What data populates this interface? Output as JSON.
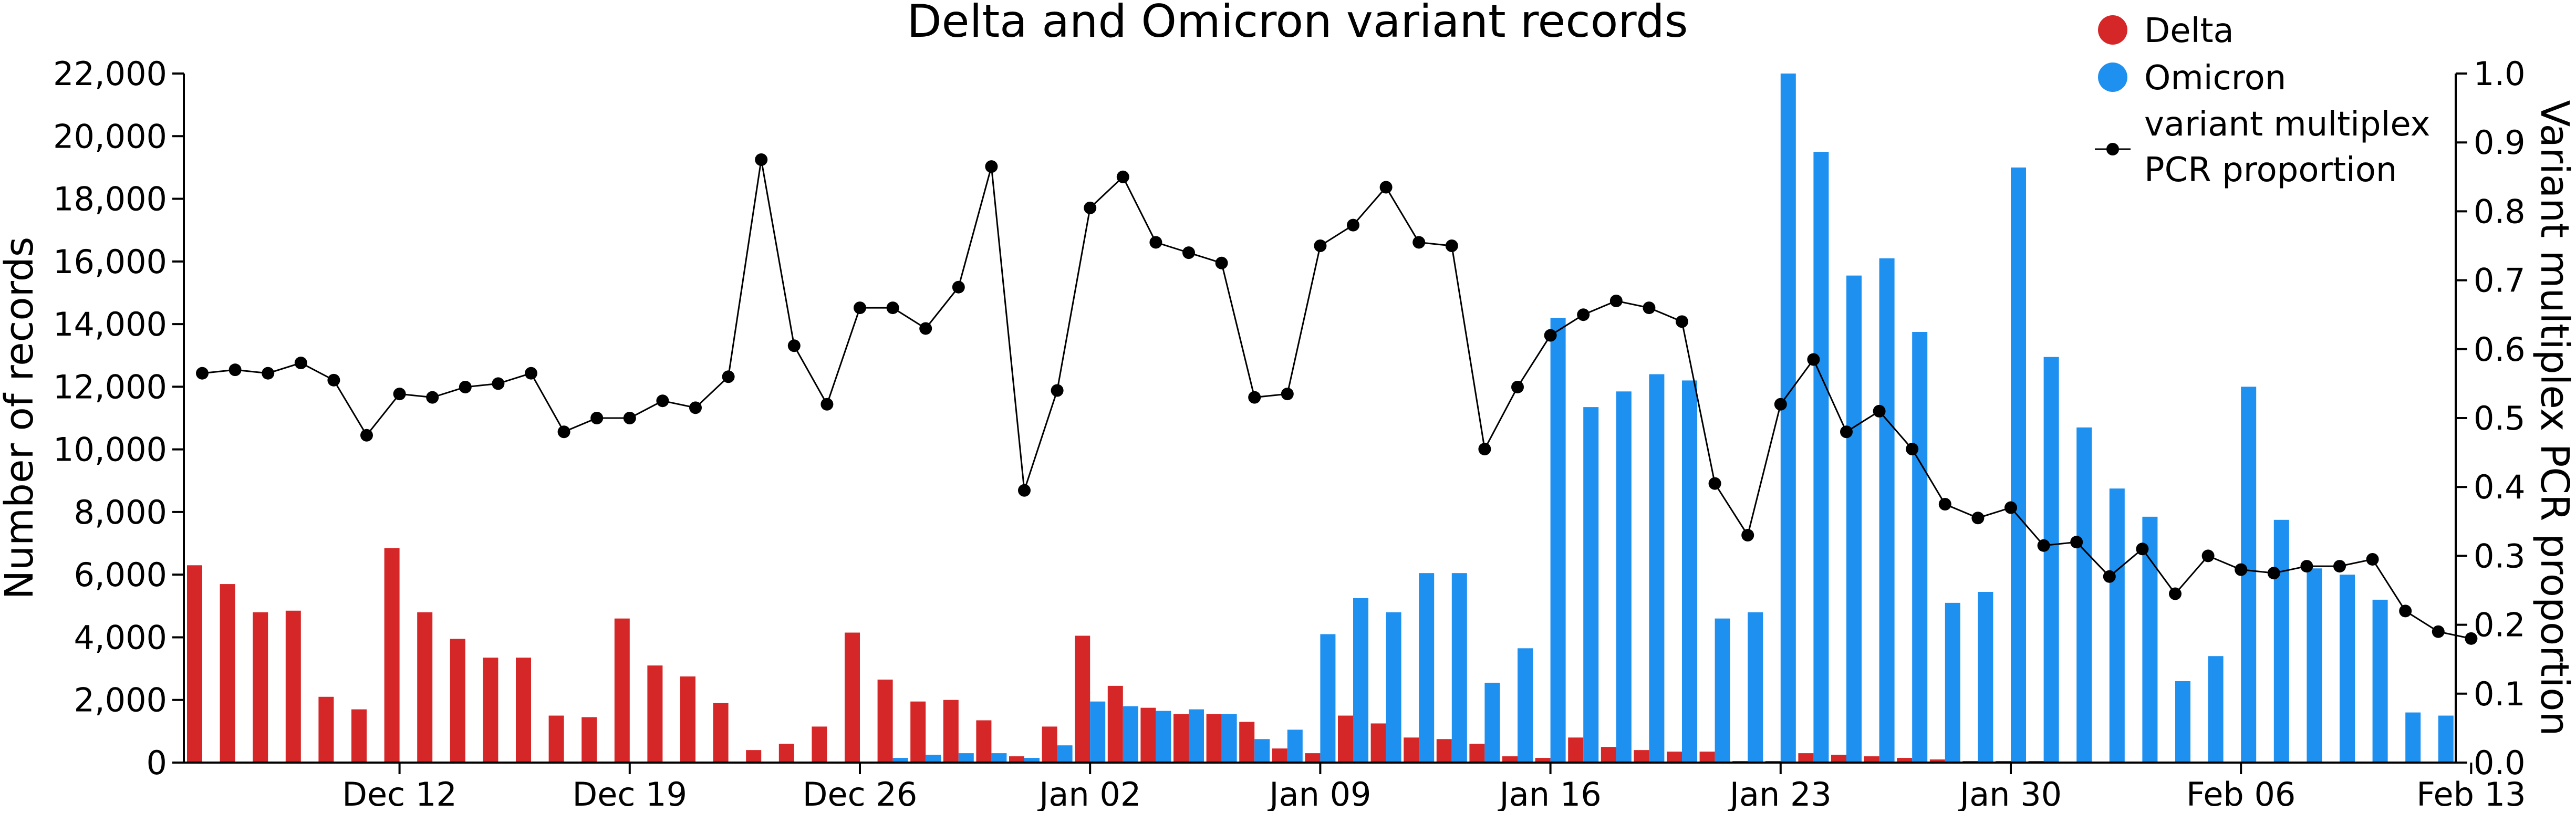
{
  "chart_data": {
    "type": "bar",
    "title": "Delta and Omicron variant records",
    "ylabel": "Number of records",
    "y2label": "Variant multiplex PCR proportion",
    "xlabel": "",
    "ylim": [
      0,
      22000
    ],
    "y2lim": [
      0.0,
      1.0
    ],
    "yticks": [
      0,
      2000,
      4000,
      6000,
      8000,
      10000,
      12000,
      14000,
      16000,
      18000,
      20000,
      22000
    ],
    "yticklabels": [
      "0",
      "2,000",
      "4,000",
      "6,000",
      "8,000",
      "10,000",
      "12,000",
      "14,000",
      "16,000",
      "18,000",
      "20,000",
      "22,000"
    ],
    "y2ticks": [
      0.0,
      0.1,
      0.2,
      0.3,
      0.4,
      0.5,
      0.6,
      0.7,
      0.8,
      0.9,
      1.0
    ],
    "y2ticklabels": [
      "0.0",
      "0.1",
      "0.2",
      "0.3",
      "0.4",
      "0.5",
      "0.6",
      "0.7",
      "0.8",
      "0.9",
      "1.0"
    ],
    "x_dates": [
      "Dec 06",
      "Dec 07",
      "Dec 08",
      "Dec 09",
      "Dec 10",
      "Dec 11",
      "Dec 12",
      "Dec 13",
      "Dec 14",
      "Dec 15",
      "Dec 16",
      "Dec 17",
      "Dec 18",
      "Dec 19",
      "Dec 20",
      "Dec 21",
      "Dec 22",
      "Dec 23",
      "Dec 24",
      "Dec 25",
      "Dec 26",
      "Dec 27",
      "Dec 28",
      "Dec 29",
      "Dec 30",
      "Dec 31",
      "Jan 01",
      "Jan 02",
      "Jan 03",
      "Jan 04",
      "Jan 05",
      "Jan 06",
      "Jan 07",
      "Jan 08",
      "Jan 09",
      "Jan 10",
      "Jan 11",
      "Jan 12",
      "Jan 13",
      "Jan 14",
      "Jan 15",
      "Jan 16",
      "Jan 17",
      "Jan 18",
      "Jan 19",
      "Jan 20",
      "Jan 21",
      "Jan 22",
      "Jan 23",
      "Jan 24",
      "Jan 25",
      "Jan 26",
      "Jan 27",
      "Jan 28",
      "Jan 29",
      "Jan 30",
      "Jan 31",
      "Feb 01",
      "Feb 02",
      "Feb 03",
      "Feb 04",
      "Feb 05",
      "Feb 06",
      "Feb 07",
      "Feb 08",
      "Feb 09",
      "Feb 10",
      "Feb 11",
      "Feb 12",
      "Feb 13"
    ],
    "xticks": [
      "Dec 12",
      "Dec 19",
      "Dec 26",
      "Jan 02",
      "Jan 09",
      "Jan 16",
      "Jan 23",
      "Jan 30",
      "Feb 06",
      "Feb 13"
    ],
    "series": [
      {
        "name": "Delta",
        "type": "bar",
        "axis": "left",
        "color": "#d62728",
        "values": [
          6300,
          5700,
          4800,
          4850,
          2100,
          1700,
          6850,
          4800,
          3950,
          3350,
          3350,
          1500,
          1450,
          4600,
          3100,
          2750,
          1900,
          400,
          600,
          1150,
          4150,
          2650,
          1950,
          2000,
          1350,
          200,
          1150,
          4050,
          2450,
          1750,
          1550,
          1550,
          1300,
          450,
          300,
          1500,
          1250,
          800,
          750,
          600,
          200,
          150,
          800,
          500,
          400,
          350,
          350,
          50,
          50,
          300,
          250,
          200,
          150,
          100,
          50,
          50,
          50,
          0,
          0,
          0,
          0,
          0,
          0,
          0,
          0,
          0,
          0,
          0,
          0,
          0
        ]
      },
      {
        "name": "Omicron",
        "type": "bar",
        "axis": "left",
        "color": "#1e90f0",
        "values": [
          0,
          0,
          0,
          0,
          0,
          0,
          0,
          0,
          0,
          0,
          0,
          0,
          0,
          0,
          0,
          0,
          0,
          0,
          0,
          0,
          0,
          150,
          250,
          300,
          300,
          150,
          550,
          1950,
          1800,
          1650,
          1700,
          1550,
          750,
          1050,
          4100,
          5250,
          4800,
          6050,
          6050,
          2550,
          3650,
          14200,
          11350,
          11850,
          12400,
          12200,
          4600,
          4800,
          22000,
          19500,
          15550,
          16100,
          13750,
          5100,
          5450,
          19000,
          12950,
          10700,
          8750,
          7850,
          2600,
          3400,
          12000,
          7750,
          6200,
          6000,
          5200,
          1600,
          1500,
          0
        ]
      },
      {
        "name": "variant multiplex PCR proportion",
        "type": "line",
        "axis": "right",
        "color": "#000000",
        "values": [
          0.565,
          0.57,
          0.565,
          0.58,
          0.555,
          0.475,
          0.535,
          0.53,
          0.545,
          0.55,
          0.565,
          0.48,
          0.5,
          0.5,
          0.525,
          0.515,
          0.56,
          0.875,
          0.605,
          0.52,
          0.66,
          0.66,
          0.63,
          0.69,
          0.865,
          0.395,
          0.54,
          0.805,
          0.85,
          0.755,
          0.74,
          0.725,
          0.53,
          0.535,
          0.75,
          0.78,
          0.835,
          0.755,
          0.75,
          0.455,
          0.545,
          0.62,
          0.65,
          0.67,
          0.66,
          0.64,
          0.405,
          0.33,
          0.52,
          0.585,
          0.48,
          0.51,
          0.455,
          0.375,
          0.355,
          0.37,
          0.315,
          0.32,
          0.27,
          0.31,
          0.245,
          0.3,
          0.28,
          0.275,
          0.285,
          0.285,
          0.295,
          0.22,
          0.19,
          0.18
        ]
      }
    ],
    "legend": {
      "placement": "top-right",
      "entries": [
        {
          "label": "Delta",
          "color": "#d62728",
          "marker": "dot"
        },
        {
          "label": "Omicron",
          "color": "#1e90f0",
          "marker": "dot"
        },
        {
          "label_lines": [
            "variant multiplex",
            "PCR proportion"
          ],
          "color": "#000000",
          "marker": "line-dot"
        }
      ]
    },
    "grid": false
  }
}
